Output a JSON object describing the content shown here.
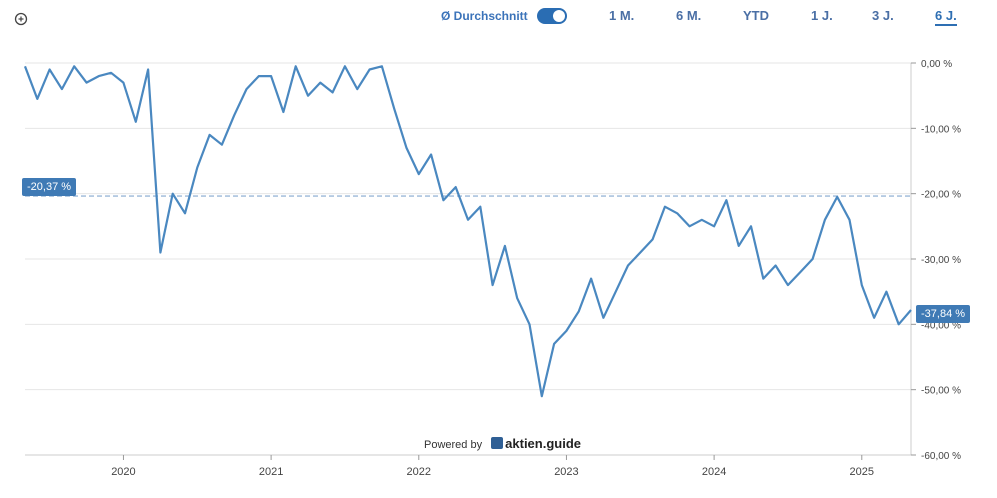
{
  "toolbar": {
    "average_label": "Ø Durchschnitt",
    "average_enabled": true,
    "ranges": [
      "1 M.",
      "6 M.",
      "YTD",
      "1 J.",
      "3 J.",
      "6 J."
    ],
    "active_range": "6 J.",
    "zoom_icon": "zoom-in-icon"
  },
  "branding": {
    "powered_by": "Powered by",
    "brand": "aktien.guide"
  },
  "colors": {
    "line": "#4a88c0",
    "badge": "#3f7ab5",
    "average_line": "#9bb8d8",
    "grid": "#e6e6e6",
    "accent": "#2e6fb3"
  },
  "badges": {
    "average": "-20,37 %",
    "current": "-37,84 %"
  },
  "chart_data": {
    "type": "line",
    "x_tick_labels": [
      "2020",
      "2021",
      "2022",
      "2023",
      "2024",
      "2025"
    ],
    "y_tick_labels": [
      "0,00 %",
      "-10,00 %",
      "-20,00 %",
      "-30,00 %",
      "-40,00 %",
      "-50,00 %",
      "-60,00 %"
    ],
    "ylim": [
      -60,
      0
    ],
    "xlim": [
      "2019-05",
      "2025-05"
    ],
    "grid": true,
    "average_value": -20.37,
    "current_value": -37.84,
    "series": [
      {
        "x": [
          "2019-05",
          "2019-06",
          "2019-07",
          "2019-08",
          "2019-09",
          "2019-10",
          "2019-11",
          "2019-12",
          "2020-01",
          "2020-02",
          "2020-03",
          "2020-04",
          "2020-05",
          "2020-06",
          "2020-07",
          "2020-08",
          "2020-09",
          "2020-10",
          "2020-11",
          "2020-12",
          "2021-01",
          "2021-02",
          "2021-03",
          "2021-04",
          "2021-05",
          "2021-06",
          "2021-07",
          "2021-08",
          "2021-09",
          "2021-10",
          "2021-11",
          "2021-12",
          "2022-01",
          "2022-02",
          "2022-03",
          "2022-04",
          "2022-05",
          "2022-06",
          "2022-07",
          "2022-08",
          "2022-09",
          "2022-10",
          "2022-11",
          "2022-12",
          "2023-01",
          "2023-02",
          "2023-03",
          "2023-04",
          "2023-05",
          "2023-06",
          "2023-07",
          "2023-08",
          "2023-09",
          "2023-10",
          "2023-11",
          "2023-12",
          "2024-01",
          "2024-02",
          "2024-03",
          "2024-04",
          "2024-05",
          "2024-06",
          "2024-07",
          "2024-08",
          "2024-09",
          "2024-10",
          "2024-11",
          "2024-12",
          "2025-01",
          "2025-02",
          "2025-03",
          "2025-04",
          "2025-05"
        ],
        "values": [
          -0.5,
          -5.5,
          -1,
          -4,
          -0.5,
          -3,
          -2,
          -1.5,
          -3,
          -9,
          -1,
          -29,
          -20,
          -23,
          -16,
          -11,
          -12.5,
          -8,
          -4,
          -2,
          -2,
          -7.5,
          -0.5,
          -5,
          -3,
          -4.5,
          -0.5,
          -4,
          -1,
          -0.5,
          -7,
          -13,
          -17,
          -14,
          -21,
          -19,
          -24,
          -22,
          -34,
          -28,
          -36,
          -40,
          -51,
          -43,
          -41,
          -38,
          -33,
          -39,
          -35,
          -31,
          -29,
          -27,
          -22,
          -23,
          -25,
          -24,
          -25,
          -21,
          -28,
          -25,
          -33,
          -31,
          -34,
          -32,
          -30,
          -24,
          -20.5,
          -24,
          -34,
          -39,
          -35,
          -40,
          -37.8
        ]
      }
    ]
  }
}
